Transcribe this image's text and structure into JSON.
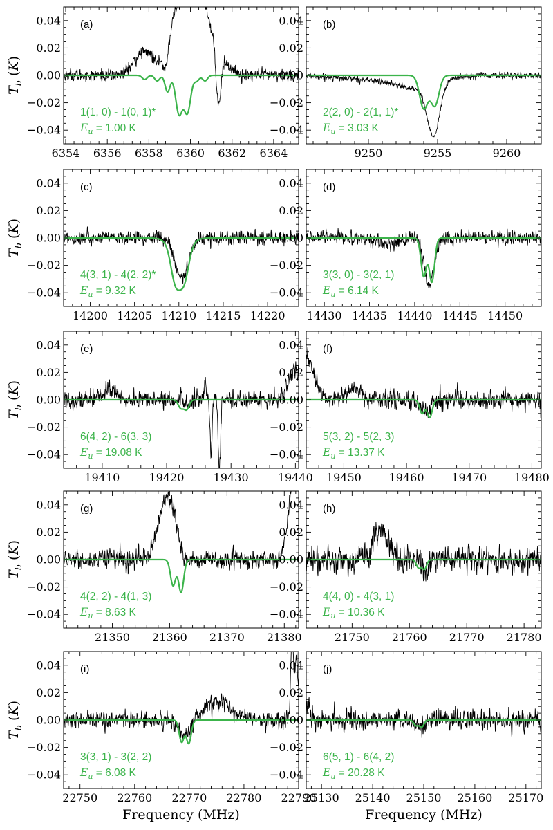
{
  "figure": {
    "y_axis_label": "T_b (K)",
    "x_axis_label": "Frequency (MHz)",
    "model_color": "#3cb44b",
    "data_color": "#000000"
  },
  "chart_data": [
    {
      "type": "line",
      "panel": "(a)",
      "transition": "1(1, 0) - 1(0, 1)*",
      "eu": "1.00 K",
      "xlim": [
        6353.9,
        6365.2
      ],
      "ylim": [
        -0.05,
        0.05
      ],
      "xticks": [
        6354,
        6356,
        6358,
        6360,
        6362,
        6364
      ],
      "yticks": [
        -0.04,
        -0.02,
        0.0,
        0.02,
        0.04
      ],
      "model_dips": [
        [
          6359.45,
          -0.028,
          0.16
        ],
        [
          6359.85,
          -0.027,
          0.16
        ],
        [
          6358.9,
          -0.012,
          0.12
        ],
        [
          6358.4,
          -0.004,
          0.12
        ],
        [
          6360.3,
          -0.004,
          0.12
        ],
        [
          6360.7,
          -0.004,
          0.12
        ],
        [
          6357.8,
          -0.003,
          0.12
        ]
      ],
      "data_features": [
        [
          6359.9,
          0.09,
          0.6
        ],
        [
          6357.8,
          0.017,
          0.5
        ],
        [
          6361.0,
          0.018,
          0.6
        ],
        [
          6358.8,
          -0.012,
          0.15
        ],
        [
          6361.35,
          -0.04,
          0.12
        ],
        [
          6359.5,
          -0.02,
          0.12
        ]
      ],
      "noise": 0.003
    },
    {
      "type": "line",
      "panel": "(b)",
      "transition": "2(2, 0) - 2(1, 1)*",
      "eu": "3.03 K",
      "xlim": [
        9245.5,
        9262.5
      ],
      "ylim": [
        -0.05,
        0.05
      ],
      "xticks": [
        9250,
        9255,
        9260
      ],
      "yticks": [
        -0.04,
        -0.02,
        0.0,
        0.02,
        0.04
      ],
      "model_dips": [
        [
          9254.0,
          -0.024,
          0.3
        ],
        [
          9254.8,
          -0.022,
          0.3
        ]
      ],
      "data_features": [
        [
          9254.7,
          -0.038,
          0.45
        ],
        [
          9253.6,
          -0.008,
          1.5
        ],
        [
          9250.5,
          -0.003,
          2.5
        ]
      ],
      "noise": 0.0015
    },
    {
      "type": "line",
      "panel": "(c)",
      "transition": "4(3, 1) - 4(2, 2)*",
      "eu": "9.32 K",
      "xlim": [
        14197.0,
        14223.5
      ],
      "ylim": [
        -0.05,
        0.05
      ],
      "xticks": [
        14200,
        14205,
        14210,
        14215,
        14220
      ],
      "yticks": [
        -0.04,
        -0.02,
        0.0,
        0.02,
        0.04
      ],
      "model_dips": [
        [
          14209.6,
          -0.022,
          0.5
        ],
        [
          14210.6,
          -0.021,
          0.5
        ],
        [
          14210.1,
          -0.012,
          1.0
        ]
      ],
      "data_features": [
        [
          14210.3,
          -0.03,
          0.75
        ]
      ],
      "noise": 0.0035
    },
    {
      "type": "line",
      "panel": "(d)",
      "transition": "3(3, 0) - 3(2, 1)",
      "eu": "6.14 K",
      "xlim": [
        14428.0,
        14454.0
      ],
      "ylim": [
        -0.05,
        0.05
      ],
      "xticks": [
        14430,
        14435,
        14440,
        14445,
        14450
      ],
      "yticks": [
        -0.04,
        -0.02,
        0.0,
        0.02,
        0.04
      ],
      "model_dips": [
        [
          14441.0,
          -0.028,
          0.3
        ],
        [
          14441.9,
          -0.032,
          0.3
        ]
      ],
      "data_features": [
        [
          14441.6,
          -0.034,
          0.55
        ],
        [
          14437.2,
          -0.005,
          1.0
        ]
      ],
      "noise": 0.0035
    },
    {
      "type": "line",
      "panel": "(e)",
      "transition": "6(4, 2) - 6(3, 3)",
      "eu": "19.08 K",
      "xlim": [
        19404.0,
        19440.5
      ],
      "ylim": [
        -0.05,
        0.05
      ],
      "xticks": [
        19410,
        19420,
        19430,
        19440
      ],
      "yticks": [
        -0.04,
        -0.02,
        0.0,
        0.02,
        0.04
      ],
      "model_dips": [
        [
          19422.2,
          -0.006,
          0.4
        ],
        [
          19423.1,
          -0.007,
          0.4
        ]
      ],
      "data_features": [
        [
          19411.0,
          0.008,
          1.0
        ],
        [
          19426.9,
          -0.04,
          0.15
        ],
        [
          19428.2,
          -0.052,
          0.18
        ],
        [
          19426.0,
          0.01,
          0.2
        ],
        [
          19440.0,
          0.02,
          1.2
        ],
        [
          19423.0,
          -0.004,
          0.5
        ]
      ],
      "noise": 0.0045
    },
    {
      "type": "line",
      "panel": "(f)",
      "transition": "5(3, 2) - 5(2, 3)",
      "eu": "13.37 K",
      "xlim": [
        19444.0,
        19481.5
      ],
      "ylim": [
        -0.05,
        0.05
      ],
      "xticks": [
        19450,
        19460,
        19470,
        19480
      ],
      "yticks": [
        -0.04,
        -0.02,
        0.0,
        0.02,
        0.04
      ],
      "model_dips": [
        [
          19462.5,
          -0.01,
          0.4
        ],
        [
          19463.7,
          -0.013,
          0.4
        ]
      ],
      "data_features": [
        [
          19444.0,
          0.03,
          1.3
        ],
        [
          19451.5,
          0.008,
          1.0
        ],
        [
          19463.0,
          -0.007,
          0.8
        ]
      ],
      "noise": 0.0045
    },
    {
      "type": "line",
      "panel": "(g)",
      "transition": "4(2, 2) - 4(1, 3)",
      "eu": "8.63 K",
      "xlim": [
        21341.5,
        21382.5
      ],
      "ylim": [
        -0.05,
        0.05
      ],
      "xticks": [
        21350,
        21360,
        21370,
        21380
      ],
      "yticks": [
        -0.04,
        -0.02,
        0.0,
        0.02,
        0.04
      ],
      "model_dips": [
        [
          21360.6,
          -0.019,
          0.45
        ],
        [
          21362.0,
          -0.024,
          0.45
        ]
      ],
      "data_features": [
        [
          21359.6,
          0.046,
          1.5
        ],
        [
          21381.8,
          0.06,
          1.0
        ],
        [
          21362.5,
          -0.006,
          0.6
        ]
      ],
      "noise": 0.0045
    },
    {
      "type": "line",
      "panel": "(h)",
      "transition": "4(4, 0) - 4(3, 1)",
      "eu": "10.36 K",
      "xlim": [
        21742.0,
        21783.0
      ],
      "ylim": [
        -0.05,
        0.05
      ],
      "xticks": [
        21750,
        21760,
        21770,
        21780
      ],
      "yticks": [
        -0.04,
        -0.02,
        0.0,
        0.02,
        0.04
      ],
      "model_dips": [
        [
          21761.6,
          -0.006,
          0.4
        ],
        [
          21762.6,
          -0.007,
          0.4
        ]
      ],
      "data_features": [
        [
          21755.0,
          0.022,
          1.3
        ],
        [
          21762.9,
          -0.012,
          0.5
        ]
      ],
      "noise": 0.0065
    },
    {
      "type": "line",
      "panel": "(i)",
      "transition": "3(3, 1) - 3(2, 2)",
      "eu": "6.08 K",
      "xlim": [
        22747.0,
        22790.0
      ],
      "ylim": [
        -0.05,
        0.05
      ],
      "xticks": [
        22750,
        22760,
        22770,
        22780,
        22790
      ],
      "yticks": [
        -0.04,
        -0.02,
        0.0,
        0.02,
        0.04
      ],
      "model_dips": [
        [
          22768.6,
          -0.016,
          0.45
        ],
        [
          22769.9,
          -0.017,
          0.45
        ]
      ],
      "data_features": [
        [
          22769.2,
          -0.012,
          1.2
        ],
        [
          22775.0,
          0.014,
          2.6
        ],
        [
          22788.8,
          0.06,
          0.25
        ],
        [
          22789.6,
          0.045,
          0.3
        ]
      ],
      "noise": 0.0042
    },
    {
      "type": "line",
      "panel": "(j)",
      "transition": "6(5, 1) - 6(4, 2)",
      "eu": "20.28 K",
      "xlim": [
        25127.0,
        25173.0
      ],
      "ylim": [
        -0.05,
        0.05
      ],
      "xticks": [
        25130,
        25140,
        25150,
        25160,
        25170
      ],
      "yticks": [
        -0.04,
        -0.02,
        0.0,
        0.02,
        0.04
      ],
      "model_dips": [
        [
          25148.5,
          -0.004,
          0.45
        ],
        [
          25149.6,
          -0.005,
          0.45
        ]
      ],
      "data_features": [
        [
          25149.3,
          -0.008,
          0.8
        ],
        [
          25127.5,
          0.012,
          0.3
        ]
      ],
      "noise": 0.0048
    }
  ]
}
